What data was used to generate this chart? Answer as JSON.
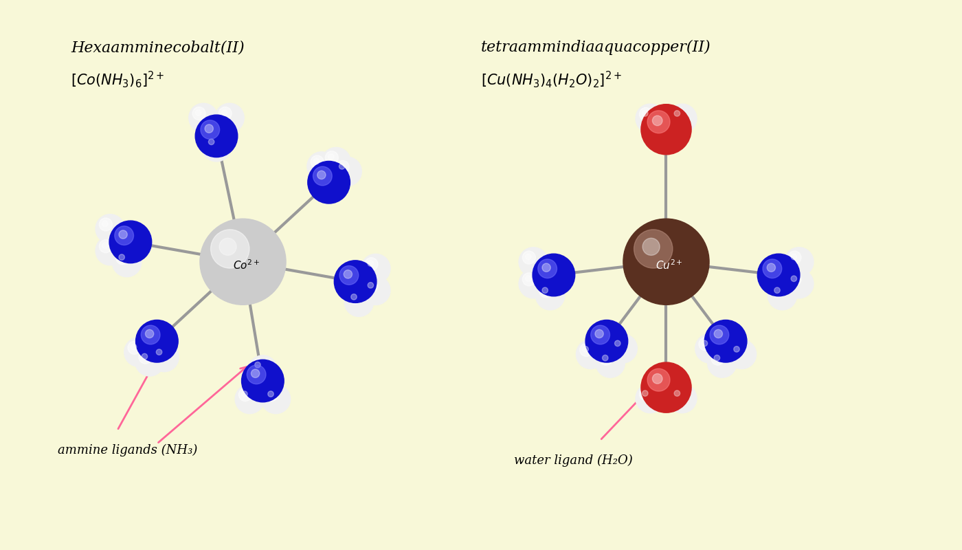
{
  "bg_color": "#f8f8d8",
  "title_left": "Hexaamminecobalt(II)",
  "formula_left": "[Co(NH₃)₆]²⁺",
  "title_right": "tetraammindiaaquacopper(II)",
  "formula_right": "[Cu(NH₃)₄(H₂O)₂]²⁺",
  "label_left": "ammine ligands (NH₃)",
  "label_right": "water ligand (H₂O)",
  "cobalt_color": "#cccccc",
  "copper_color": "#5a3020",
  "nitrogen_color": "#1010cc",
  "hydrogen_color": "#f0f0f0",
  "oxygen_color": "#cc2222",
  "bond_color": "#999999",
  "arrow_color": "#ff6699"
}
